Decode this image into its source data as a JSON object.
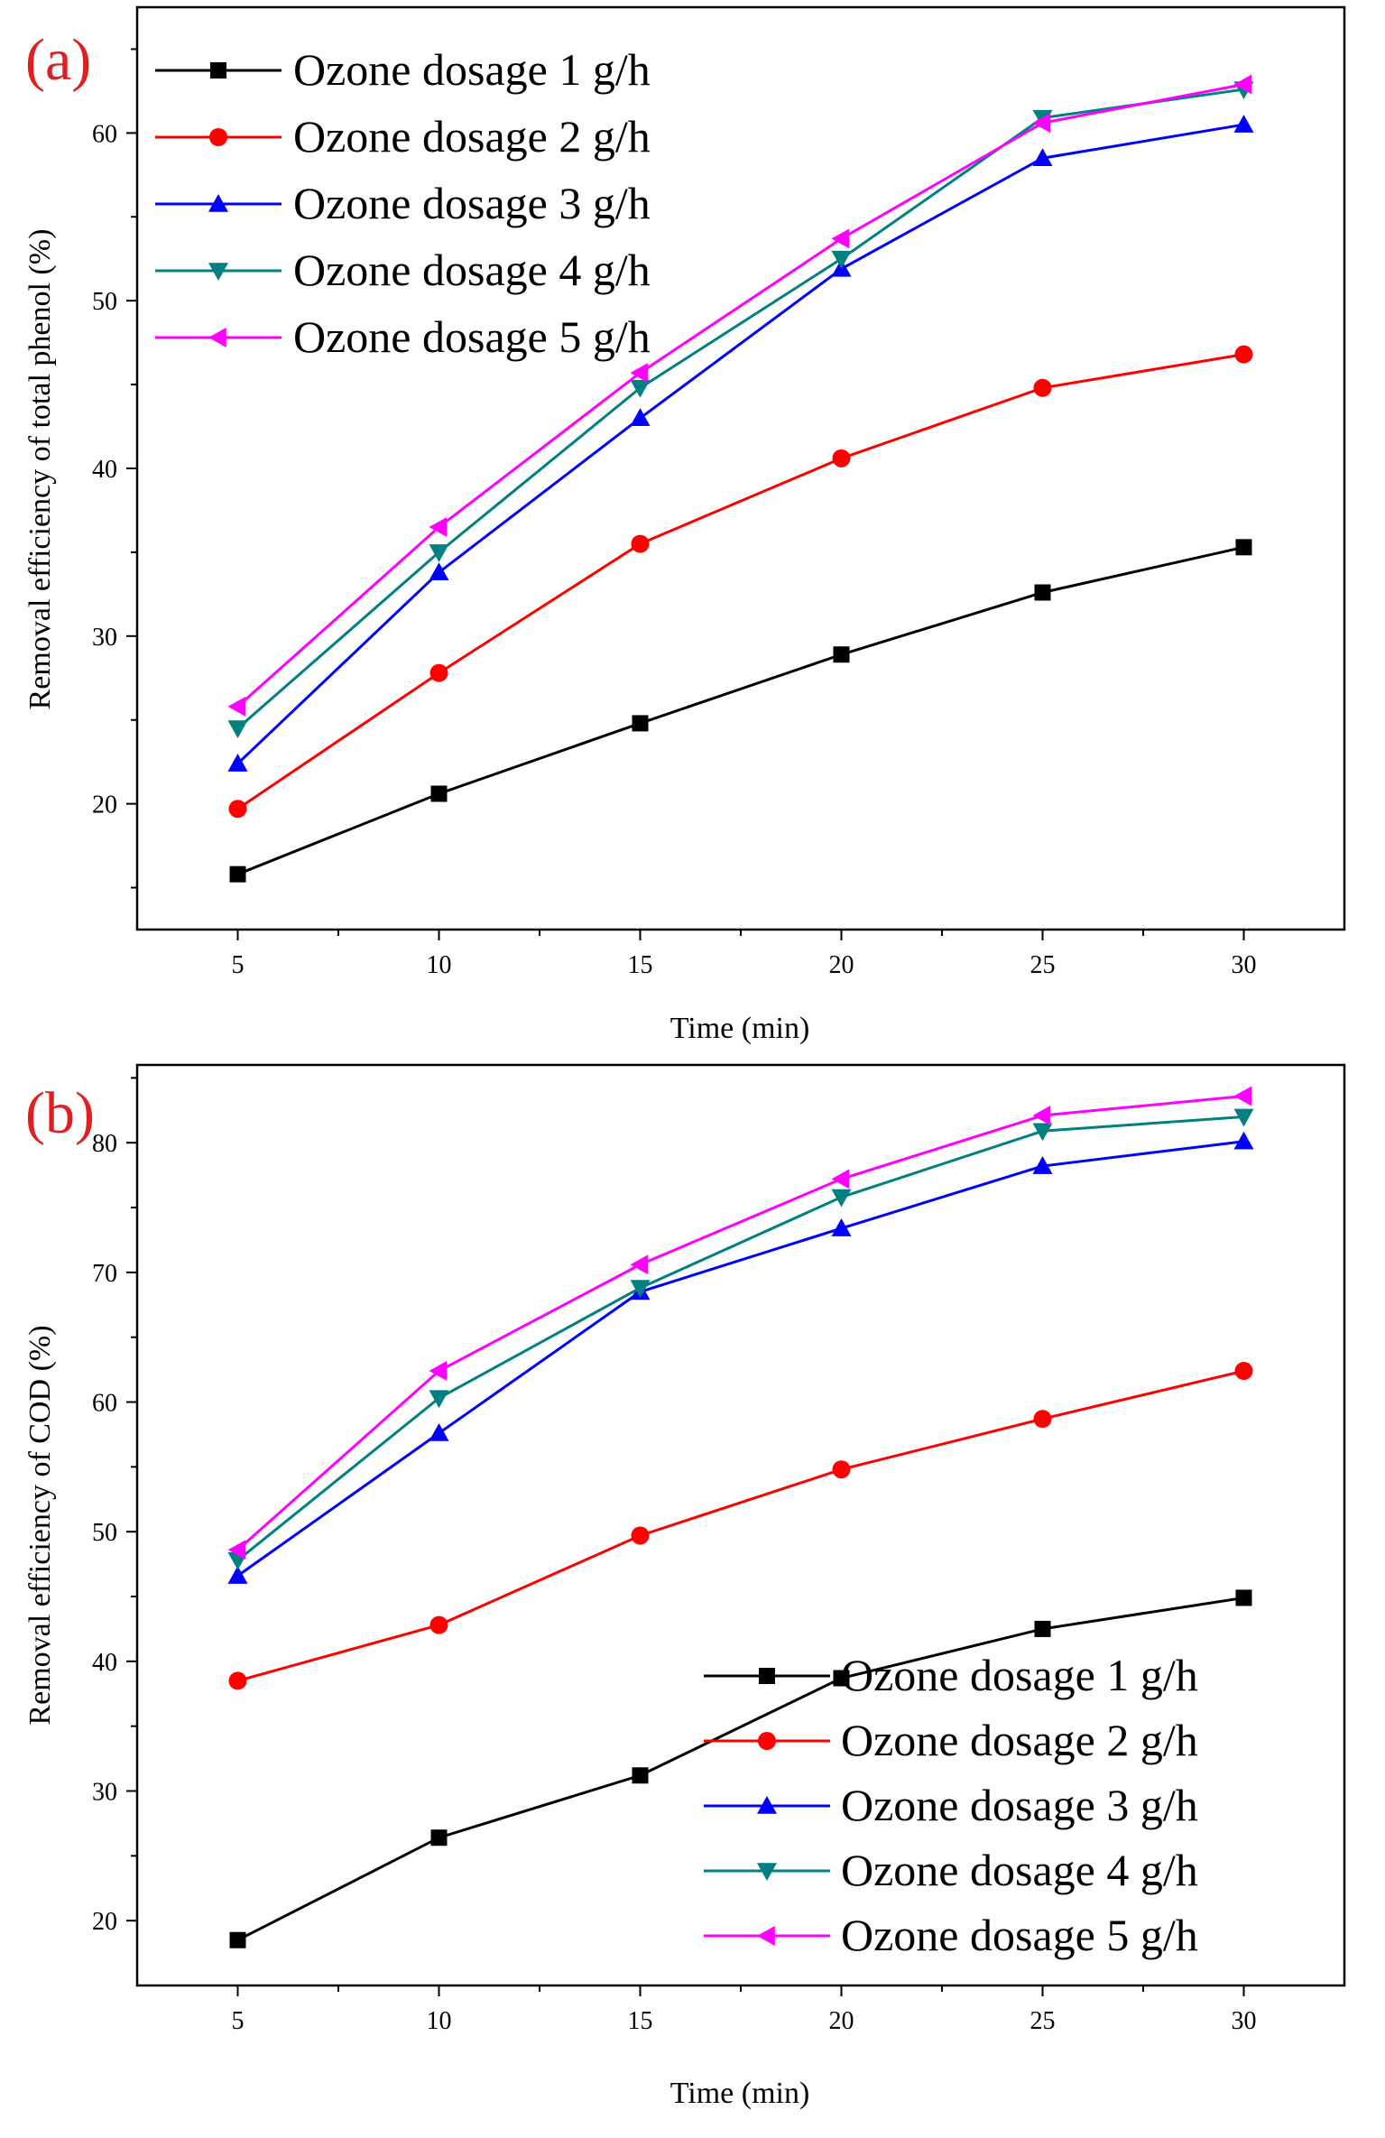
{
  "colors": {
    "s1": "#000000",
    "s2": "#ff0000",
    "s3": "#0000ff",
    "s4": "#008080",
    "s5": "#ff00ff",
    "panel_label": "#e02020"
  },
  "chart_data": [
    {
      "type": "line",
      "panel_label": "(a)",
      "title": "",
      "xlabel": "Time (min)",
      "ylabel": "Removal efficiency of total phenol (%)",
      "x": [
        5,
        10,
        15,
        20,
        25,
        30
      ],
      "xlim": [
        2.5,
        32.5
      ],
      "ylim": [
        12.5,
        67.5
      ],
      "xticks": [
        5,
        10,
        15,
        20,
        25,
        30
      ],
      "yticks": [
        20,
        30,
        40,
        50,
        60
      ],
      "legend_position": "top-left",
      "series": [
        {
          "name": "Ozone dosage 1 g/h",
          "marker": "square",
          "values": [
            15.8,
            20.6,
            24.8,
            28.9,
            32.6,
            35.3
          ]
        },
        {
          "name": "Ozone dosage 2 g/h",
          "marker": "circle",
          "values": [
            19.7,
            27.8,
            35.5,
            40.6,
            44.8,
            46.8
          ]
        },
        {
          "name": "Ozone dosage 3 g/h",
          "marker": "triangle-up",
          "values": [
            22.4,
            33.8,
            43.0,
            51.9,
            58.5,
            60.5
          ]
        },
        {
          "name": "Ozone dosage 4 g/h",
          "marker": "triangle-down",
          "values": [
            24.5,
            35.0,
            44.8,
            52.5,
            60.9,
            62.6
          ]
        },
        {
          "name": "Ozone dosage 5 g/h",
          "marker": "triangle-left",
          "values": [
            25.8,
            36.5,
            45.7,
            53.7,
            60.6,
            62.9
          ]
        }
      ]
    },
    {
      "type": "line",
      "panel_label": "(b)",
      "title": "",
      "xlabel": "Time (min)",
      "ylabel": "Removal efficiency of COD (%)",
      "x": [
        5,
        10,
        15,
        20,
        25,
        30
      ],
      "xlim": [
        2.5,
        32.5
      ],
      "ylim": [
        15.0,
        86.0
      ],
      "xticks": [
        5,
        10,
        15,
        20,
        25,
        30
      ],
      "yticks": [
        20,
        30,
        40,
        50,
        60,
        70,
        80
      ],
      "legend_position": "bottom-right",
      "series": [
        {
          "name": "Ozone dosage 1 g/h",
          "marker": "square",
          "values": [
            18.5,
            26.4,
            31.2,
            38.7,
            42.5,
            44.9
          ]
        },
        {
          "name": "Ozone dosage 2 g/h",
          "marker": "circle",
          "values": [
            38.5,
            42.8,
            49.7,
            54.8,
            58.7,
            62.4
          ]
        },
        {
          "name": "Ozone dosage 3 g/h",
          "marker": "triangle-up",
          "values": [
            46.6,
            57.6,
            68.5,
            73.4,
            78.2,
            80.1
          ]
        },
        {
          "name": "Ozone dosage 4 g/h",
          "marker": "triangle-down",
          "values": [
            47.8,
            60.3,
            68.8,
            75.8,
            80.9,
            82.0
          ]
        },
        {
          "name": "Ozone dosage 5 g/h",
          "marker": "triangle-left",
          "values": [
            48.6,
            62.4,
            70.6,
            77.2,
            82.1,
            83.6
          ]
        }
      ]
    }
  ]
}
